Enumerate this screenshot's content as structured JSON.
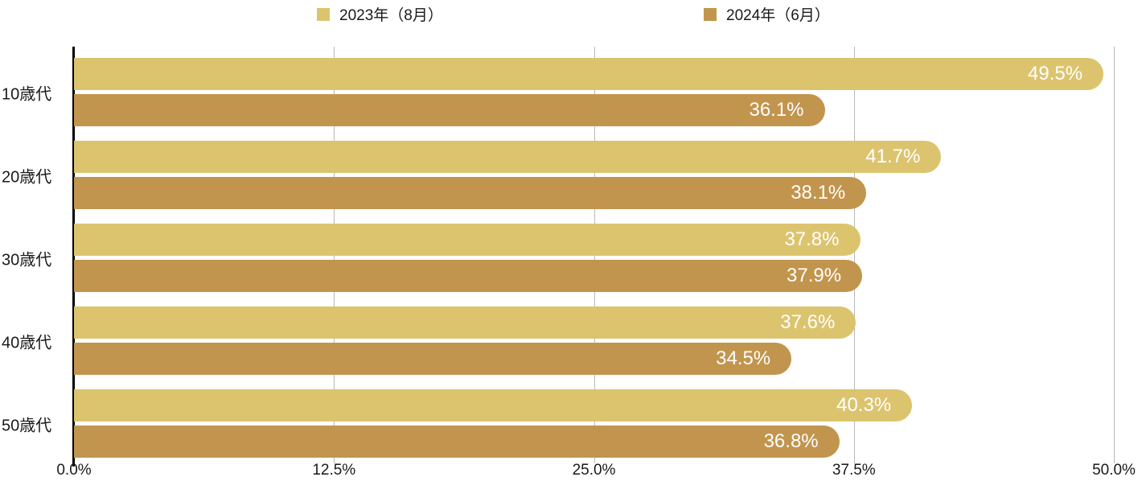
{
  "legend": {
    "items": [
      {
        "label": "2023年（8月）",
        "color": "#dcc46f"
      },
      {
        "label": "2024年（6月）",
        "color": "#c2954e"
      }
    ]
  },
  "chart_data": {
    "type": "bar",
    "orientation": "horizontal",
    "title": "",
    "categories": [
      "10歳代",
      "20歳代",
      "30歳代",
      "40歳代",
      "50歳代"
    ],
    "series": [
      {
        "name": "2023年（8月）",
        "color": "#dcc46f",
        "values": [
          49.5,
          41.7,
          37.8,
          37.6,
          40.3
        ]
      },
      {
        "name": "2024年（6月）",
        "color": "#c2954e",
        "values": [
          36.1,
          38.1,
          37.9,
          34.5,
          36.8
        ]
      }
    ],
    "value_suffix": "%",
    "value_label_color": "#ffffff",
    "xlim": [
      0,
      50
    ],
    "x_ticks": [
      "0.0%",
      "12.5%",
      "25.0%",
      "37.5%",
      "50.0%"
    ],
    "grid": true,
    "gridline_color": "#b9b9b9",
    "axis_color": "#000000",
    "legend_position": "top"
  }
}
